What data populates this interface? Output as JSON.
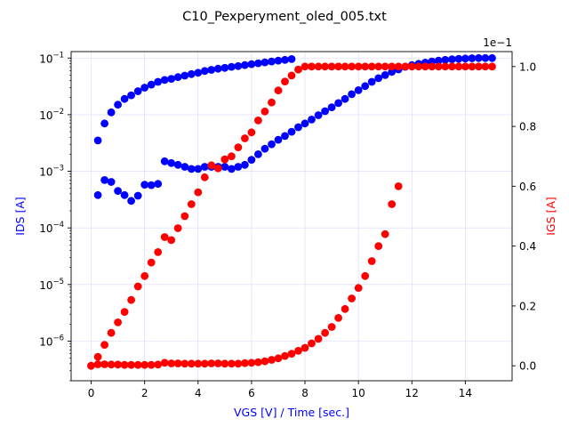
{
  "chart_data": {
    "type": "scatter",
    "title": "C10_Pexperyment_oled_005.txt",
    "xlabel": "VGS [V] / Time [sec.]",
    "ylabel_left": "IDS [A]",
    "ylabel_right": "IGS [A]",
    "right_offset_label": "1e−1",
    "xlim": [
      -0.75,
      15.75
    ],
    "ylim_left_log": [
      2e-07,
      0.13
    ],
    "ylim_right": [
      -0.05,
      1.05
    ],
    "x_ticks": [
      0,
      2,
      4,
      6,
      8,
      10,
      12,
      14
    ],
    "x_tick_labels": [
      "0",
      "2",
      "4",
      "6",
      "8",
      "10",
      "12",
      "14"
    ],
    "left_ticks": [
      1e-06,
      1e-05,
      0.0001,
      0.001,
      0.01,
      0.1
    ],
    "left_tick_labels": [
      {
        "base": "10",
        "exp": "−6"
      },
      {
        "base": "10",
        "exp": "−5"
      },
      {
        "base": "10",
        "exp": "−4"
      },
      {
        "base": "10",
        "exp": "−3"
      },
      {
        "base": "10",
        "exp": "−2"
      },
      {
        "base": "10",
        "exp": "−1"
      }
    ],
    "right_ticks": [
      0.0,
      0.2,
      0.4,
      0.6,
      0.8,
      1.0
    ],
    "right_tick_labels": [
      "0.0",
      "0.2",
      "0.4",
      "0.6",
      "0.8",
      "1.0"
    ],
    "grid": true,
    "colors": {
      "ids": "#0000ff",
      "igs": "#ff0000",
      "left_label": "#0000ff",
      "right_label": "#ff0000",
      "grid": "#b8b8ff"
    },
    "series": [
      {
        "axis": "left",
        "color": "#0000ff",
        "points": [
          [
            0.25,
            0.0035
          ],
          [
            0.5,
            0.007
          ],
          [
            0.75,
            0.011
          ],
          [
            1.0,
            0.015
          ],
          [
            1.25,
            0.019
          ],
          [
            1.5,
            0.022
          ],
          [
            1.75,
            0.026
          ],
          [
            2.0,
            0.03
          ],
          [
            2.25,
            0.034
          ],
          [
            2.5,
            0.038
          ],
          [
            2.75,
            0.041
          ],
          [
            3.0,
            0.043
          ],
          [
            3.25,
            0.046
          ],
          [
            3.5,
            0.049
          ],
          [
            3.75,
            0.052
          ],
          [
            4.0,
            0.055
          ],
          [
            4.25,
            0.059
          ],
          [
            4.5,
            0.062
          ],
          [
            4.75,
            0.065
          ],
          [
            5.0,
            0.067
          ],
          [
            5.25,
            0.07
          ],
          [
            5.5,
            0.072
          ],
          [
            5.75,
            0.075
          ],
          [
            6.0,
            0.078
          ],
          [
            6.25,
            0.081
          ],
          [
            6.5,
            0.084
          ],
          [
            6.75,
            0.087
          ],
          [
            7.0,
            0.09
          ],
          [
            7.25,
            0.093
          ],
          [
            7.5,
            0.096
          ],
          [
            0.25,
            0.00038
          ],
          [
            0.5,
            0.0007
          ],
          [
            0.75,
            0.00065
          ],
          [
            1.0,
            0.00045
          ],
          [
            1.25,
            0.00038
          ],
          [
            1.5,
            0.0003
          ],
          [
            1.75,
            0.00037
          ],
          [
            2.0,
            0.00058
          ],
          [
            2.25,
            0.00057
          ],
          [
            2.5,
            0.0006
          ],
          [
            2.75,
            0.0015
          ],
          [
            3.0,
            0.0014
          ],
          [
            3.25,
            0.0013
          ],
          [
            3.5,
            0.0012
          ],
          [
            3.75,
            0.0011
          ],
          [
            4.0,
            0.0011
          ],
          [
            4.25,
            0.0012
          ],
          [
            4.5,
            0.0012
          ],
          [
            4.75,
            0.0012
          ],
          [
            5.0,
            0.0012
          ],
          [
            5.25,
            0.0011
          ],
          [
            5.5,
            0.0012
          ],
          [
            5.75,
            0.0013
          ],
          [
            6.0,
            0.0016
          ],
          [
            6.25,
            0.002
          ],
          [
            6.5,
            0.0025
          ],
          [
            6.75,
            0.003
          ],
          [
            7.0,
            0.0036
          ],
          [
            7.25,
            0.0042
          ],
          [
            7.5,
            0.005
          ],
          [
            7.75,
            0.006
          ],
          [
            8.0,
            0.007
          ],
          [
            8.25,
            0.0082
          ],
          [
            8.5,
            0.0098
          ],
          [
            8.75,
            0.0115
          ],
          [
            9.0,
            0.0135
          ],
          [
            9.25,
            0.016
          ],
          [
            9.5,
            0.019
          ],
          [
            9.75,
            0.023
          ],
          [
            10.0,
            0.027
          ],
          [
            10.25,
            0.032
          ],
          [
            10.5,
            0.038
          ],
          [
            10.75,
            0.044
          ],
          [
            11.0,
            0.05
          ],
          [
            11.25,
            0.057
          ],
          [
            11.5,
            0.063
          ],
          [
            11.75,
            0.07
          ],
          [
            12.0,
            0.075
          ],
          [
            12.25,
            0.079
          ],
          [
            12.5,
            0.083
          ],
          [
            12.75,
            0.087
          ],
          [
            13.0,
            0.09
          ],
          [
            13.25,
            0.093
          ],
          [
            13.5,
            0.095
          ],
          [
            13.75,
            0.097
          ],
          [
            14.0,
            0.098
          ],
          [
            14.25,
            0.099
          ],
          [
            14.5,
            0.1
          ],
          [
            14.75,
            0.1
          ],
          [
            15.0,
            0.1
          ]
        ]
      },
      {
        "axis": "right",
        "color": "#ff0000",
        "points": [
          [
            0.0,
            0.0
          ],
          [
            0.25,
            0.03
          ],
          [
            0.5,
            0.07
          ],
          [
            0.75,
            0.11
          ],
          [
            1.0,
            0.145
          ],
          [
            1.25,
            0.18
          ],
          [
            1.5,
            0.22
          ],
          [
            1.75,
            0.265
          ],
          [
            2.0,
            0.3
          ],
          [
            2.25,
            0.345
          ],
          [
            2.5,
            0.38
          ],
          [
            2.75,
            0.43
          ],
          [
            3.0,
            0.42
          ],
          [
            3.25,
            0.46
          ],
          [
            3.5,
            0.5
          ],
          [
            3.75,
            0.54
          ],
          [
            4.0,
            0.58
          ],
          [
            4.25,
            0.63
          ],
          [
            4.5,
            0.67
          ],
          [
            4.75,
            0.66
          ],
          [
            5.0,
            0.69
          ],
          [
            5.25,
            0.7
          ],
          [
            5.5,
            0.73
          ],
          [
            5.75,
            0.76
          ],
          [
            6.0,
            0.78
          ],
          [
            6.25,
            0.82
          ],
          [
            6.5,
            0.85
          ],
          [
            6.75,
            0.88
          ],
          [
            7.0,
            0.92
          ],
          [
            7.25,
            0.95
          ],
          [
            7.5,
            0.97
          ],
          [
            7.75,
            0.99
          ],
          [
            8.0,
            1.0
          ],
          [
            8.25,
            1.0
          ],
          [
            8.5,
            1.0
          ],
          [
            8.75,
            1.0
          ],
          [
            9.0,
            1.0
          ],
          [
            9.25,
            1.0
          ],
          [
            9.5,
            1.0
          ],
          [
            9.75,
            1.0
          ],
          [
            10.0,
            1.0
          ],
          [
            10.25,
            1.0
          ],
          [
            10.5,
            1.0
          ],
          [
            10.75,
            1.0
          ],
          [
            11.0,
            1.0
          ],
          [
            11.25,
            1.0
          ],
          [
            11.5,
            1.0
          ],
          [
            11.75,
            1.0
          ],
          [
            12.0,
            1.0
          ],
          [
            12.25,
            1.0
          ],
          [
            12.5,
            1.0
          ],
          [
            12.75,
            1.0
          ],
          [
            13.0,
            1.0
          ],
          [
            13.25,
            1.0
          ],
          [
            13.5,
            1.0
          ],
          [
            13.75,
            1.0
          ],
          [
            14.0,
            1.0
          ],
          [
            14.25,
            1.0
          ],
          [
            14.5,
            1.0
          ],
          [
            14.75,
            1.0
          ],
          [
            15.0,
            1.0
          ],
          [
            0.0,
            0.0
          ],
          [
            0.25,
            0.005
          ],
          [
            0.5,
            0.005
          ],
          [
            0.75,
            0.004
          ],
          [
            1.0,
            0.004
          ],
          [
            1.25,
            0.003
          ],
          [
            1.5,
            0.003
          ],
          [
            1.75,
            0.003
          ],
          [
            2.0,
            0.003
          ],
          [
            2.25,
            0.003
          ],
          [
            2.5,
            0.004
          ],
          [
            2.75,
            0.01
          ],
          [
            3.0,
            0.008
          ],
          [
            3.25,
            0.008
          ],
          [
            3.5,
            0.007
          ],
          [
            3.75,
            0.007
          ],
          [
            4.0,
            0.007
          ],
          [
            4.25,
            0.007
          ],
          [
            4.5,
            0.008
          ],
          [
            4.75,
            0.008
          ],
          [
            5.0,
            0.007
          ],
          [
            5.25,
            0.007
          ],
          [
            5.5,
            0.007
          ],
          [
            5.75,
            0.009
          ],
          [
            6.0,
            0.01
          ],
          [
            6.25,
            0.012
          ],
          [
            6.5,
            0.015
          ],
          [
            6.75,
            0.02
          ],
          [
            7.0,
            0.025
          ],
          [
            7.25,
            0.033
          ],
          [
            7.5,
            0.04
          ],
          [
            7.75,
            0.05
          ],
          [
            8.0,
            0.06
          ],
          [
            8.25,
            0.075
          ],
          [
            8.5,
            0.09
          ],
          [
            8.75,
            0.11
          ],
          [
            9.0,
            0.13
          ],
          [
            9.25,
            0.16
          ],
          [
            9.5,
            0.19
          ],
          [
            9.75,
            0.225
          ],
          [
            10.0,
            0.26
          ],
          [
            10.25,
            0.3
          ],
          [
            10.5,
            0.35
          ],
          [
            10.75,
            0.4
          ],
          [
            11.0,
            0.44
          ],
          [
            11.25,
            0.54
          ],
          [
            11.5,
            0.6
          ]
        ]
      }
    ]
  }
}
